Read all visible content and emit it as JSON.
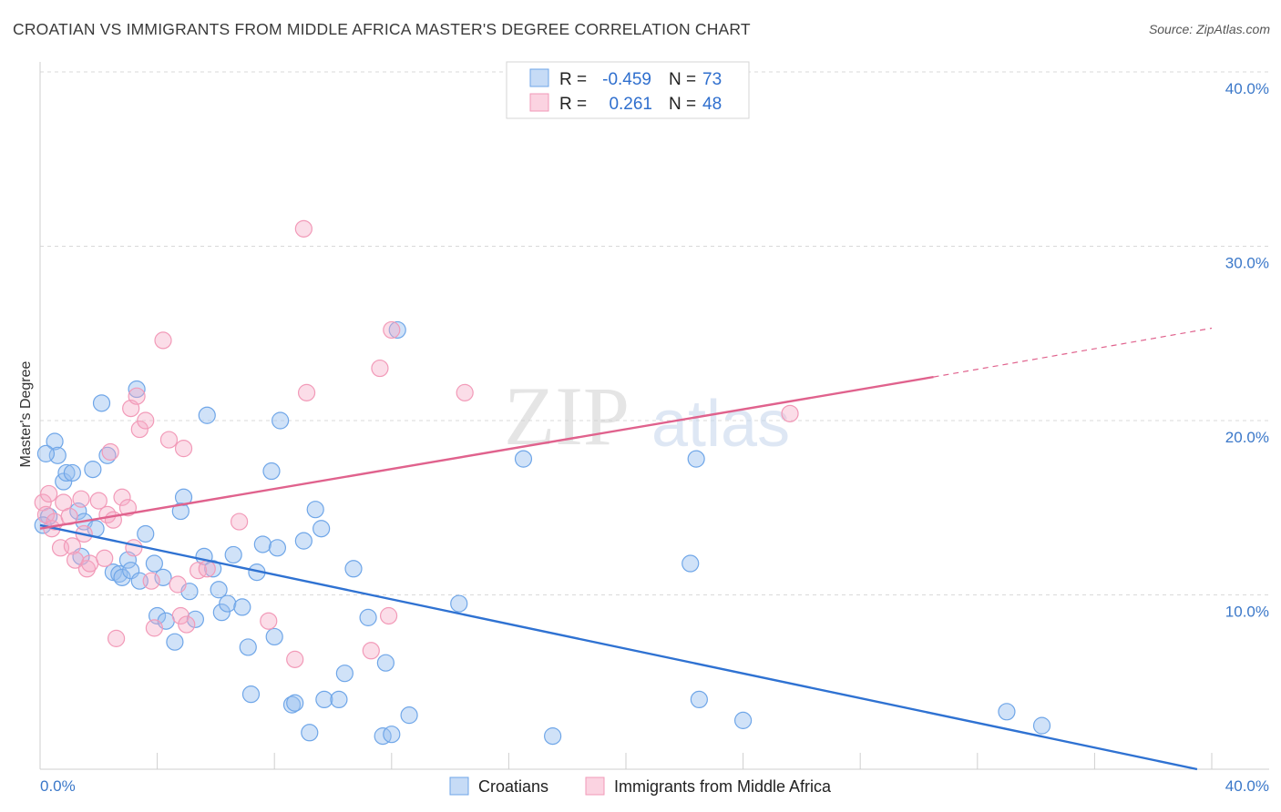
{
  "title": "CROATIAN VS IMMIGRANTS FROM MIDDLE AFRICA MASTER'S DEGREE CORRELATION CHART",
  "source": "Source: ZipAtlas.com",
  "watermark": {
    "zip": "ZIP",
    "atlas": "atlas"
  },
  "legend_top": {
    "rows": [
      {
        "r_label": "R =",
        "r_value": "-0.459",
        "n_label": "N =",
        "n_value": "73",
        "color": "#6fa6e8"
      },
      {
        "r_label": "R =",
        "r_value": "0.261",
        "n_label": "N =",
        "n_value": "48",
        "color": "#f29ab8"
      }
    ]
  },
  "chart_data": {
    "type": "scatter",
    "ylabel": "Master's Degree",
    "xlim": [
      0,
      40
    ],
    "ylim": [
      0,
      40
    ],
    "y_ticks": [
      "10.0%",
      "20.0%",
      "30.0%",
      "40.0%"
    ],
    "y_tick_values": [
      10,
      20,
      30,
      40
    ],
    "x_tick_labels": [
      "0.0%",
      "40.0%"
    ],
    "grid": true,
    "series": [
      {
        "name": "Croatians",
        "color": "#6fa6e8",
        "line_color": "#2f72d2",
        "trend": {
          "x0": 0,
          "y0": 14.0,
          "x1": 39.5,
          "y1": 0
        },
        "points": [
          [
            0.3,
            14.5
          ],
          [
            0.5,
            18.8
          ],
          [
            0.6,
            18.0
          ],
          [
            0.8,
            16.5
          ],
          [
            0.9,
            17.0
          ],
          [
            1.1,
            17.0
          ],
          [
            1.3,
            14.8
          ],
          [
            1.4,
            12.2
          ],
          [
            1.5,
            14.2
          ],
          [
            1.8,
            17.2
          ],
          [
            1.9,
            13.8
          ],
          [
            2.1,
            21.0
          ],
          [
            2.3,
            18.0
          ],
          [
            2.5,
            11.3
          ],
          [
            2.7,
            11.2
          ],
          [
            2.8,
            11.0
          ],
          [
            3.0,
            12.0
          ],
          [
            3.1,
            11.4
          ],
          [
            3.3,
            21.8
          ],
          [
            3.4,
            10.8
          ],
          [
            3.6,
            13.5
          ],
          [
            3.9,
            11.8
          ],
          [
            4.0,
            8.8
          ],
          [
            4.2,
            11.0
          ],
          [
            4.3,
            8.5
          ],
          [
            4.6,
            7.3
          ],
          [
            4.8,
            14.8
          ],
          [
            4.9,
            15.6
          ],
          [
            5.1,
            10.2
          ],
          [
            5.3,
            8.6
          ],
          [
            5.6,
            12.2
          ],
          [
            5.7,
            20.3
          ],
          [
            5.9,
            11.5
          ],
          [
            6.1,
            10.3
          ],
          [
            6.2,
            9.0
          ],
          [
            6.4,
            9.5
          ],
          [
            6.6,
            12.3
          ],
          [
            6.9,
            9.3
          ],
          [
            7.1,
            7.0
          ],
          [
            7.2,
            4.3
          ],
          [
            7.4,
            11.3
          ],
          [
            7.6,
            12.9
          ],
          [
            7.9,
            17.1
          ],
          [
            8.0,
            7.6
          ],
          [
            8.1,
            12.7
          ],
          [
            8.2,
            20.0
          ],
          [
            8.6,
            3.7
          ],
          [
            8.7,
            3.8
          ],
          [
            9.0,
            13.1
          ],
          [
            9.2,
            2.1
          ],
          [
            9.4,
            14.9
          ],
          [
            9.6,
            13.8
          ],
          [
            9.7,
            4.0
          ],
          [
            10.2,
            4.0
          ],
          [
            10.4,
            5.5
          ],
          [
            10.7,
            11.5
          ],
          [
            11.2,
            8.7
          ],
          [
            11.7,
            1.9
          ],
          [
            11.8,
            6.1
          ],
          [
            12.0,
            2.0
          ],
          [
            12.2,
            25.2
          ],
          [
            12.6,
            3.1
          ],
          [
            14.3,
            9.5
          ],
          [
            16.5,
            17.8
          ],
          [
            17.5,
            1.9
          ],
          [
            22.2,
            11.8
          ],
          [
            22.5,
            4.0
          ],
          [
            22.4,
            17.8
          ],
          [
            24.0,
            2.8
          ],
          [
            33.0,
            3.3
          ],
          [
            34.2,
            2.5
          ],
          [
            0.2,
            18.1
          ],
          [
            0.1,
            14.0
          ]
        ]
      },
      {
        "name": "Immigrants from Middle Africa",
        "color": "#f29ab8",
        "line_color": "#e0628d",
        "trend": {
          "x0": 0,
          "y0": 13.8,
          "x1": 30.5,
          "y1": 22.5
        },
        "trend_dashed_to": {
          "x": 40,
          "y": 25.3
        },
        "points": [
          [
            0.1,
            15.3
          ],
          [
            0.2,
            14.6
          ],
          [
            0.4,
            13.8
          ],
          [
            0.5,
            14.2
          ],
          [
            0.7,
            12.7
          ],
          [
            0.8,
            15.3
          ],
          [
            1.0,
            14.5
          ],
          [
            1.1,
            12.8
          ],
          [
            1.2,
            12.0
          ],
          [
            1.4,
            15.5
          ],
          [
            1.5,
            13.5
          ],
          [
            1.6,
            11.5
          ],
          [
            1.7,
            11.8
          ],
          [
            2.0,
            15.4
          ],
          [
            2.2,
            12.1
          ],
          [
            2.3,
            14.6
          ],
          [
            2.4,
            18.2
          ],
          [
            2.5,
            14.3
          ],
          [
            2.6,
            7.5
          ],
          [
            2.8,
            15.6
          ],
          [
            3.0,
            15.0
          ],
          [
            3.1,
            20.7
          ],
          [
            3.2,
            12.7
          ],
          [
            3.3,
            21.4
          ],
          [
            3.4,
            19.5
          ],
          [
            3.6,
            20.0
          ],
          [
            3.8,
            10.8
          ],
          [
            3.9,
            8.1
          ],
          [
            4.2,
            24.6
          ],
          [
            4.4,
            18.9
          ],
          [
            4.7,
            10.6
          ],
          [
            4.8,
            8.8
          ],
          [
            4.9,
            18.4
          ],
          [
            5.0,
            8.3
          ],
          [
            5.4,
            11.4
          ],
          [
            5.7,
            11.5
          ],
          [
            6.8,
            14.2
          ],
          [
            7.8,
            8.5
          ],
          [
            8.7,
            6.3
          ],
          [
            9.0,
            31.0
          ],
          [
            9.1,
            21.6
          ],
          [
            11.3,
            6.8
          ],
          [
            11.9,
            8.8
          ],
          [
            12.0,
            25.2
          ],
          [
            11.6,
            23.0
          ],
          [
            14.5,
            21.6
          ],
          [
            25.6,
            20.4
          ],
          [
            0.3,
            15.8
          ]
        ]
      }
    ]
  },
  "bottom_legend": {
    "series_1": "Croatians",
    "series_2": "Immigrants from Middle Africa"
  }
}
